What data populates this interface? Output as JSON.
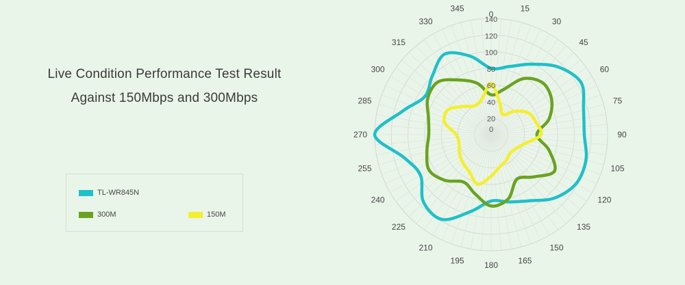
{
  "header": {
    "line1": "Live Condition Performance Test Result",
    "line2": "Against 150Mbps and 300Mbps"
  },
  "legend": [
    {
      "label": "TL-WR845N",
      "color": "#1fc0c8"
    },
    {
      "label": "300M",
      "color": "#6aa320"
    },
    {
      "label": "150M",
      "color": "#f4ef2e"
    }
  ],
  "chart_data": {
    "type": "polar-line",
    "angles": [
      0,
      15,
      30,
      45,
      60,
      75,
      90,
      105,
      120,
      135,
      150,
      165,
      180,
      195,
      210,
      225,
      240,
      255,
      270,
      285,
      300,
      315,
      330,
      345
    ],
    "radial_ticks": [
      0,
      20,
      40,
      60,
      80,
      100,
      120,
      140
    ],
    "rlim": [
      0,
      140
    ],
    "grid": true,
    "series": [
      {
        "name": "TL-WR845N",
        "color": "#1fc0c8",
        "values": [
          80,
          85,
          98,
          115,
          125,
          115,
          112,
          118,
          118,
          108,
          92,
          84,
          80,
          96,
          118,
          115,
          98,
          108,
          140,
          110,
          92,
          100,
          112,
          98
        ]
      },
      {
        "name": "300M",
        "color": "#6aa320",
        "values": [
          48,
          56,
          78,
          88,
          84,
          72,
          55,
          72,
          88,
          72,
          62,
          80,
          86,
          74,
          66,
          78,
          86,
          80,
          75,
          78,
          88,
          90,
          76,
          64
        ]
      },
      {
        "name": "150M",
        "color": "#f4ef2e",
        "values": [
          62,
          40,
          28,
          40,
          52,
          56,
          60,
          42,
          34,
          32,
          36,
          40,
          50,
          62,
          52,
          48,
          44,
          40,
          42,
          58,
          60,
          48,
          40,
          44
        ]
      }
    ]
  }
}
